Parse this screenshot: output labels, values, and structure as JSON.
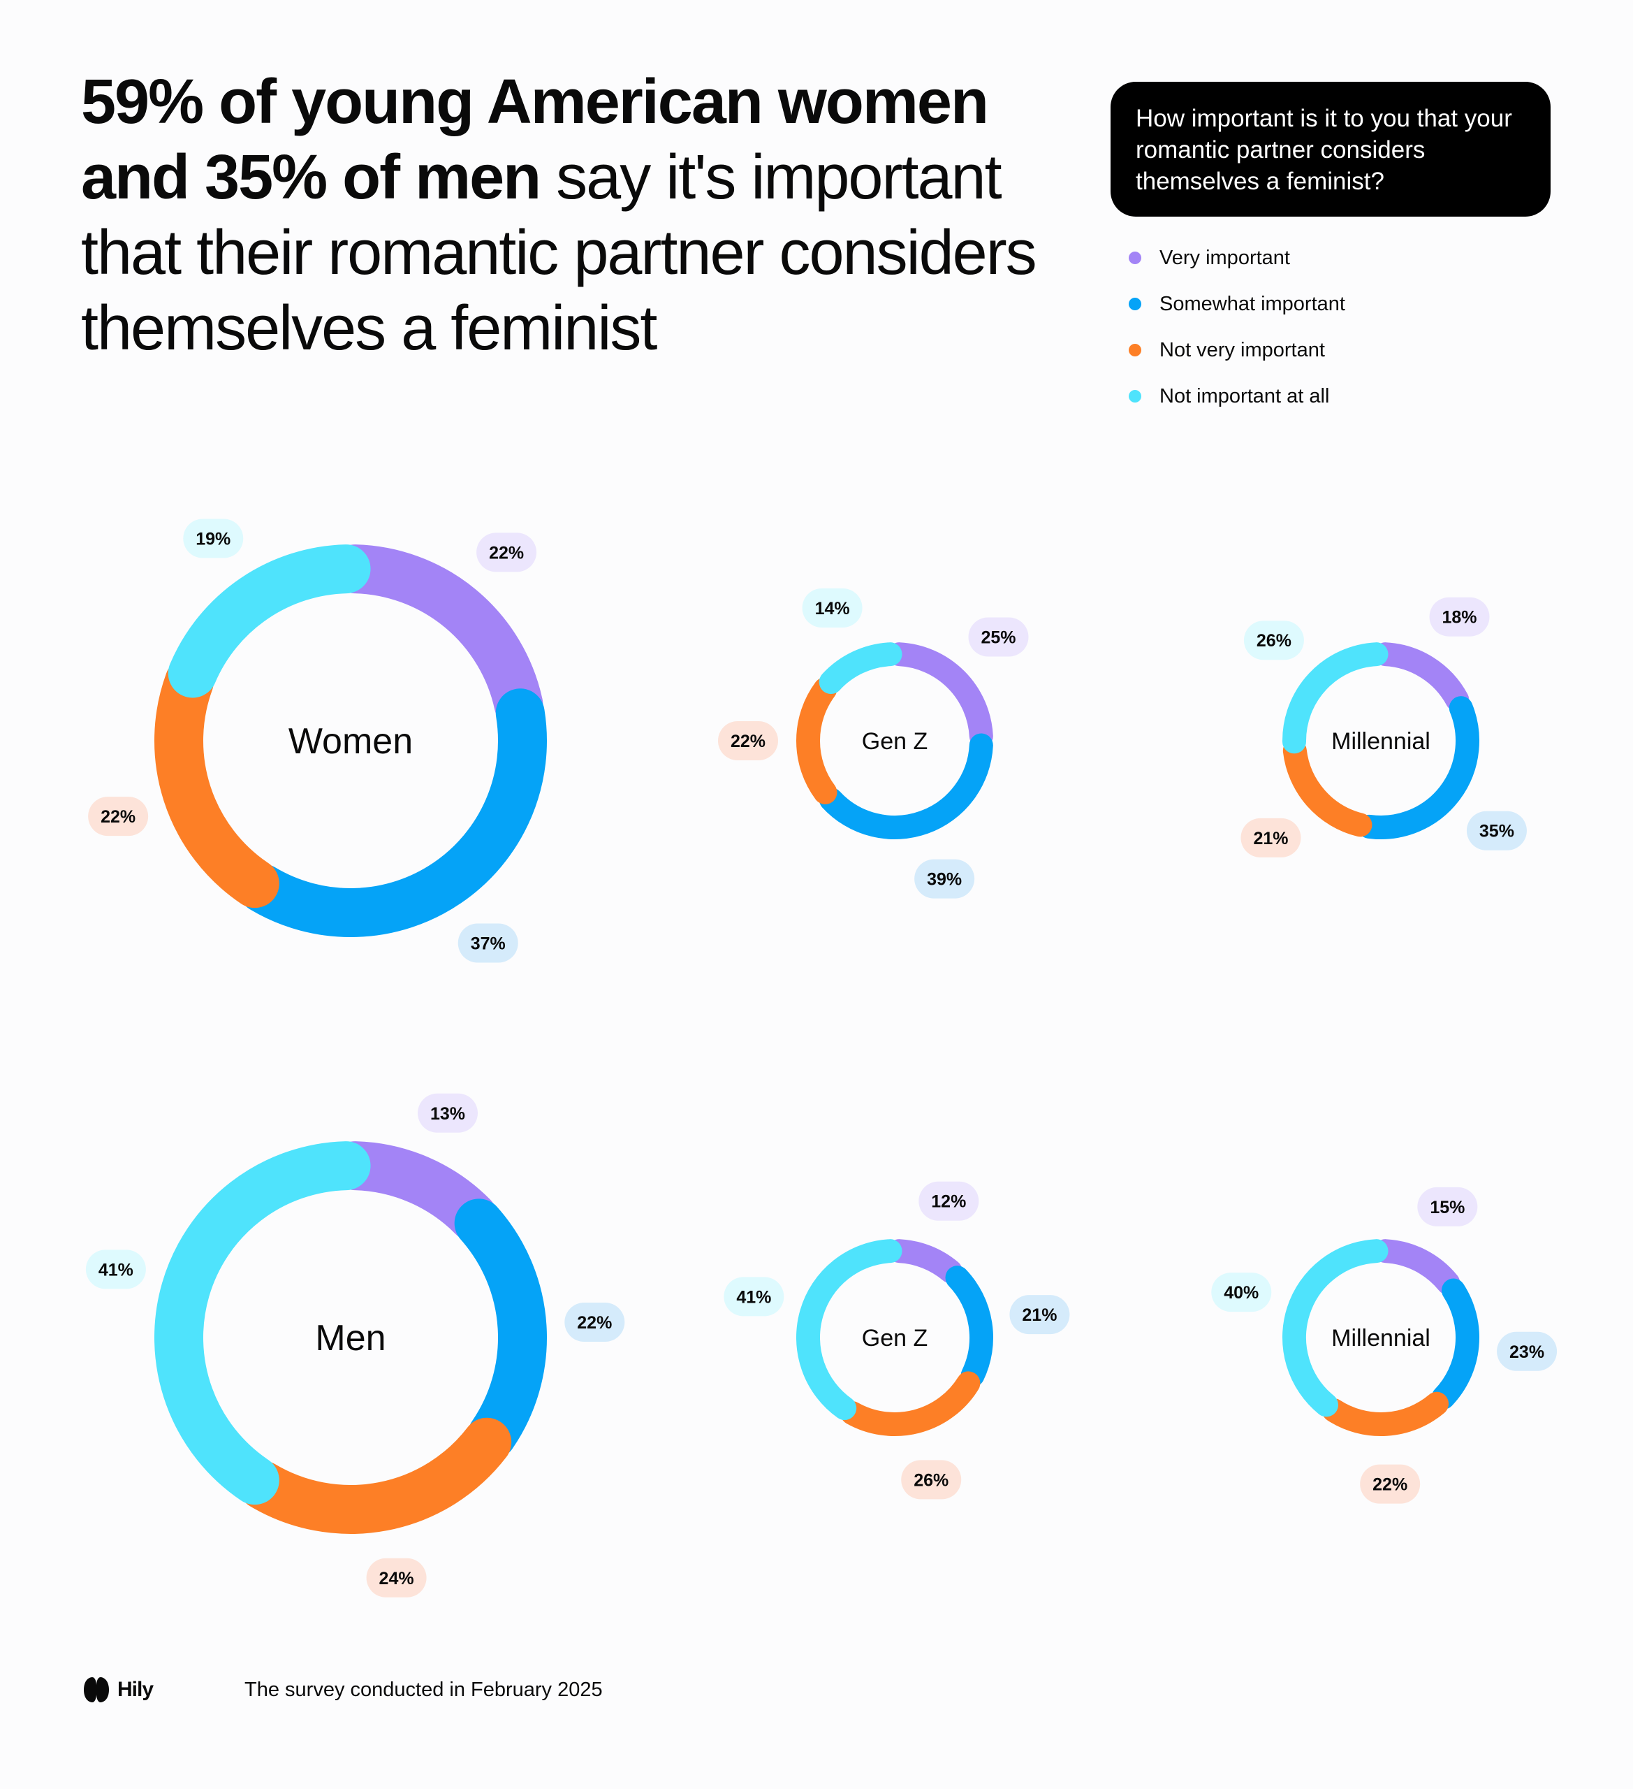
{
  "headline": {
    "bold_part": "59% of young American women and 35% of men",
    "regular_part": " say it's important that their romantic partner considers themselves a feminist"
  },
  "question": "How important is it to you that your romantic partner considers themselves a feminist?",
  "legend": [
    {
      "label": "Very important",
      "color": "#a384f6"
    },
    {
      "label": "Somewhat important",
      "color": "#05a3f7"
    },
    {
      "label": "Not very important",
      "color": "#fd7f26"
    },
    {
      "label": "Not important at all",
      "color": "#4fe3fc"
    }
  ],
  "chart_data": [
    {
      "type": "pie",
      "label": "Women",
      "categories": [
        "Very important",
        "Somewhat important",
        "Not very important",
        "Not important at all"
      ],
      "values": [
        22,
        37,
        22,
        19
      ]
    },
    {
      "type": "pie",
      "label": "Gen Z",
      "categories": [
        "Very important",
        "Somewhat important",
        "Not very important",
        "Not important at all"
      ],
      "values": [
        25,
        39,
        22,
        14
      ]
    },
    {
      "type": "pie",
      "label": "Millennial",
      "categories": [
        "Very important",
        "Somewhat important",
        "Not very important",
        "Not important at all"
      ],
      "values": [
        18,
        35,
        21,
        26
      ]
    },
    {
      "type": "pie",
      "label": "Men",
      "categories": [
        "Very important",
        "Somewhat important",
        "Not very important",
        "Not important at all"
      ],
      "values": [
        13,
        22,
        24,
        41
      ]
    },
    {
      "type": "pie",
      "label": "Gen Z",
      "categories": [
        "Very important",
        "Somewhat important",
        "Not very important",
        "Not important at all"
      ],
      "values": [
        12,
        21,
        26,
        41
      ]
    },
    {
      "type": "pie",
      "label": "Millennial",
      "categories": [
        "Very important",
        "Somewhat important",
        "Not very important",
        "Not important at all"
      ],
      "values": [
        15,
        23,
        22,
        40
      ]
    }
  ],
  "pill_colors": [
    "#ece6fd",
    "#d5ebfb",
    "#fde3d9",
    "#defafe"
  ],
  "footer": {
    "brand": "Hily",
    "note": "The survey conducted in February 2025"
  }
}
